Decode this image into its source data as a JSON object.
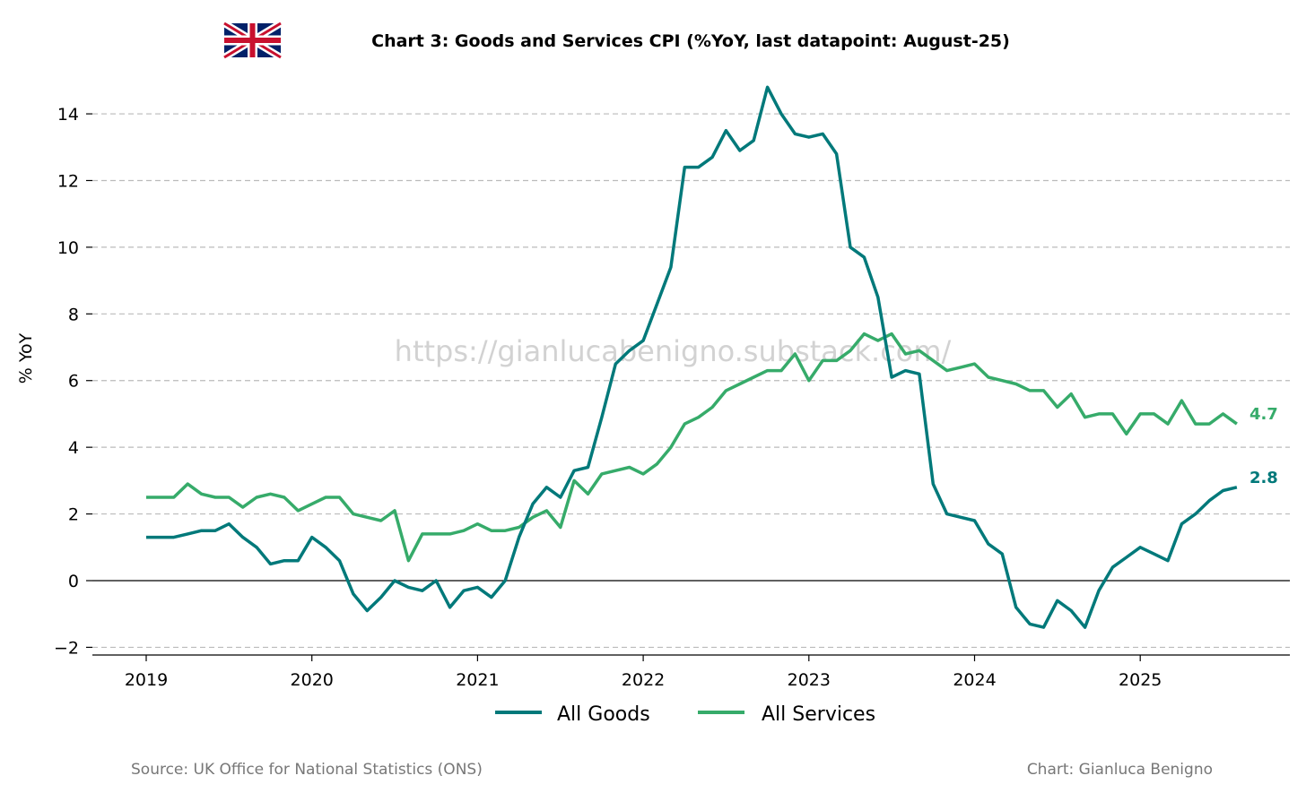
{
  "chart_data": {
    "type": "line",
    "title": "Chart 3: Goods and Services CPI (%YoY, last datapoint: August-25)",
    "ylabel": "% YoY",
    "xlabel": "",
    "ylim": [
      -2.3,
      15.2
    ],
    "yticks": [
      -2,
      0,
      2,
      4,
      6,
      8,
      10,
      12,
      14
    ],
    "ytick_labels": [
      "−2",
      "0",
      "2",
      "4",
      "6",
      "8",
      "10",
      "12",
      "14"
    ],
    "xticks": [
      "2019",
      "2020",
      "2021",
      "2022",
      "2023",
      "2024",
      "2025"
    ],
    "x_start": "2019-01",
    "x_frequency": "monthly",
    "grid": "horizontal dashed",
    "legend_position": "bottom-center",
    "series": [
      {
        "name": "All Goods",
        "color": "#00797a",
        "end_label": "2.8",
        "values": [
          1.3,
          1.3,
          1.3,
          1.4,
          1.5,
          1.5,
          1.7,
          1.3,
          1.0,
          0.5,
          0.6,
          0.6,
          1.3,
          1.0,
          0.6,
          -0.4,
          -0.9,
          -0.5,
          0.0,
          -0.2,
          -0.3,
          0.0,
          -0.8,
          -0.3,
          -0.2,
          -0.5,
          0.0,
          1.3,
          2.3,
          2.8,
          2.5,
          3.3,
          3.4,
          4.9,
          6.5,
          6.9,
          7.2,
          8.3,
          9.4,
          12.4,
          12.4,
          12.7,
          13.5,
          12.9,
          13.2,
          14.8,
          14.0,
          13.4,
          13.3,
          13.4,
          12.8,
          10.0,
          9.7,
          8.5,
          6.1,
          6.3,
          6.2,
          2.9,
          2.0,
          1.9,
          1.8,
          1.1,
          0.8,
          -0.8,
          -1.3,
          -1.4,
          -0.6,
          -0.9,
          -1.4,
          -0.3,
          0.4,
          0.7,
          1.0,
          0.8,
          0.6,
          1.7,
          2.0,
          2.4,
          2.7,
          2.8
        ]
      },
      {
        "name": "All Services",
        "color": "#36ab6a",
        "end_label": "4.7",
        "values": [
          2.5,
          2.5,
          2.5,
          2.9,
          2.6,
          2.5,
          2.5,
          2.2,
          2.5,
          2.6,
          2.5,
          2.1,
          2.3,
          2.5,
          2.5,
          2.0,
          1.9,
          1.8,
          2.1,
          0.6,
          1.4,
          1.4,
          1.4,
          1.5,
          1.7,
          1.5,
          1.5,
          1.6,
          1.9,
          2.1,
          1.6,
          3.0,
          2.6,
          3.2,
          3.3,
          3.4,
          3.2,
          3.5,
          4.0,
          4.7,
          4.9,
          5.2,
          5.7,
          5.9,
          6.1,
          6.3,
          6.3,
          6.8,
          6.0,
          6.6,
          6.6,
          6.9,
          7.4,
          7.2,
          7.4,
          6.8,
          6.9,
          6.6,
          6.3,
          6.4,
          6.5,
          6.1,
          6.0,
          5.9,
          5.7,
          5.7,
          5.2,
          5.6,
          4.9,
          5.0,
          5.0,
          4.4,
          5.0,
          5.0,
          4.7,
          5.4,
          4.7,
          4.7,
          5.0,
          4.7
        ]
      }
    ],
    "watermark": "https://gianlucabenigno.substack.com/",
    "source": "Source: UK Office for National Statistics (ONS)",
    "credit": "Chart: Gianluca Benigno"
  }
}
